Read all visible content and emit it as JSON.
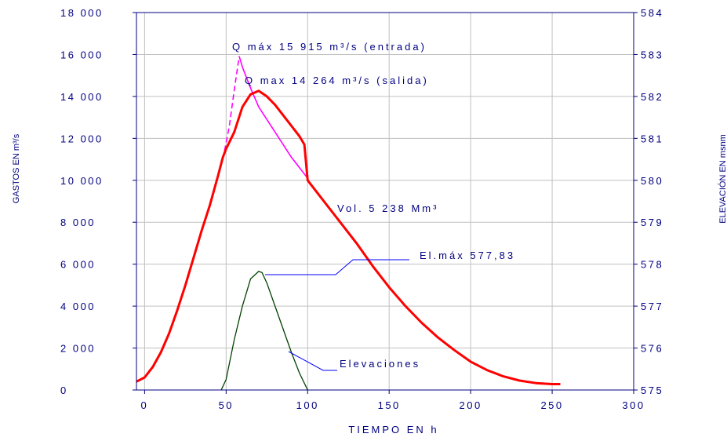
{
  "chart_data": {
    "type": "line",
    "xlabel": "TIEMPO EN h",
    "ylabel_left": "GASTOS EN m³/s",
    "ylabel_right": "ELEVACIÓN EN msnm",
    "xlim": [
      -5,
      300
    ],
    "ylim_left": [
      0,
      18000
    ],
    "ylim_right": [
      575,
      584
    ],
    "x_ticks": [
      "0",
      "50",
      "100",
      "150",
      "200",
      "250",
      "300"
    ],
    "y_left_ticks": [
      "0",
      "2 000",
      "4 000",
      "6 000",
      "8 000",
      "10 000",
      "12 000",
      "14 000",
      "16 000",
      "18 000"
    ],
    "y_right_ticks": [
      "575",
      "576",
      "577",
      "578",
      "579",
      "580",
      "581",
      "582",
      "583",
      "584"
    ],
    "grid": true,
    "colors": {
      "axes": "#000080",
      "grid": "#c0c0c0",
      "entrada": "#ff00ff",
      "salida": "#ff0000",
      "elevaciones": "#004000",
      "annotation": "#0000ff"
    },
    "series": [
      {
        "key": "entrada",
        "axis": "left",
        "dashed_segment": true,
        "x": [
          48,
          52,
          55,
          58,
          60,
          65,
          70,
          75,
          80,
          85,
          90,
          95,
          100
        ],
        "y": [
          11000,
          12600,
          14300,
          15915,
          15400,
          14400,
          13500,
          12900,
          12300,
          11700,
          11100,
          10600,
          10100
        ]
      },
      {
        "key": "salida",
        "axis": "left",
        "x": [
          -5,
          0,
          5,
          10,
          15,
          20,
          25,
          30,
          35,
          40,
          45,
          48,
          50,
          55,
          60,
          65,
          70,
          75,
          80,
          85,
          90,
          95,
          98,
          100,
          110,
          120,
          130,
          140,
          150,
          160,
          170,
          180,
          190,
          200,
          210,
          220,
          230,
          240,
          250,
          255
        ],
        "y": [
          400,
          600,
          1100,
          1800,
          2700,
          3800,
          5000,
          6300,
          7600,
          8800,
          10200,
          11100,
          11500,
          12300,
          13500,
          14100,
          14264,
          14000,
          13600,
          13100,
          12600,
          12100,
          11700,
          10000,
          9000,
          8000,
          7000,
          5900,
          4900,
          4000,
          3200,
          2500,
          1900,
          1350,
          950,
          650,
          450,
          330,
          280,
          280
        ]
      },
      {
        "key": "elevaciones",
        "axis": "right",
        "x": [
          47,
          50,
          55,
          60,
          65,
          70,
          72,
          75,
          80,
          85,
          90,
          95,
          100
        ],
        "y": [
          575.0,
          575.25,
          576.2,
          577.0,
          577.65,
          577.83,
          577.8,
          577.55,
          577.0,
          576.45,
          575.9,
          575.4,
          575.0
        ]
      }
    ],
    "annotations": [
      {
        "key": "qmax_in",
        "text": "Q máx 15 915 m³/s (entrada)"
      },
      {
        "key": "qmax_out",
        "text": "Q max 14 264 m³/s (salida)"
      },
      {
        "key": "vol",
        "text": "Vol. 5 238 Mm³"
      },
      {
        "key": "elmax",
        "text": "El.máx 577,83"
      },
      {
        "key": "elev",
        "text": "Elevaciones"
      }
    ]
  }
}
